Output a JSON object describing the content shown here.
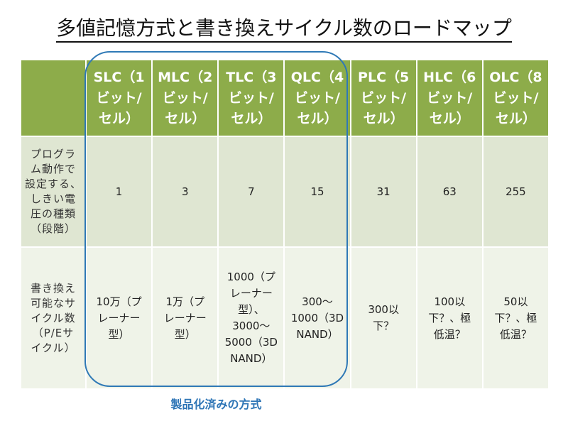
{
  "title": "多値記憶方式と書き換えサイクル数のロードマップ",
  "columns": [
    "SLC（1\nビット/\nセル）",
    "MLC（2\nビット/\nセル）",
    "TLC（3\nビット/\nセル）",
    "QLC（4\nビット/\nセル）",
    "PLC（5\nビット/\nセル）",
    "HLC（6\nビット/\nセル）",
    "OLC（8\nビット/\nセル）"
  ],
  "rows": [
    {
      "label": "プログラ\nム動作で\n設定する、\nしきい電\n圧の種類\n（段階）",
      "values": [
        "1",
        "3",
        "7",
        "15",
        "31",
        "63",
        "255"
      ]
    },
    {
      "label": "書き換え\n可能なサ\nイクル数\n（P/Eサ\nイクル）",
      "values": [
        "10万（プ\nレーナー\n型）",
        "1万（プ\nレーナー\n型）",
        "1000（プ\nレーナー\n型）、\n3000～\n5000（3D\nNAND）",
        "300～\n1000（3D\nNAND）",
        "300以\n下？",
        "100以\n下？、極\n低温？",
        "50以\n下？、極\n低温？"
      ]
    }
  ],
  "caption": "製品化済みの方式",
  "colors": {
    "header": "#8dac4a",
    "row_a": "#dfe6d2",
    "row_b": "#eff3e8",
    "oval": "#2f79b6"
  }
}
